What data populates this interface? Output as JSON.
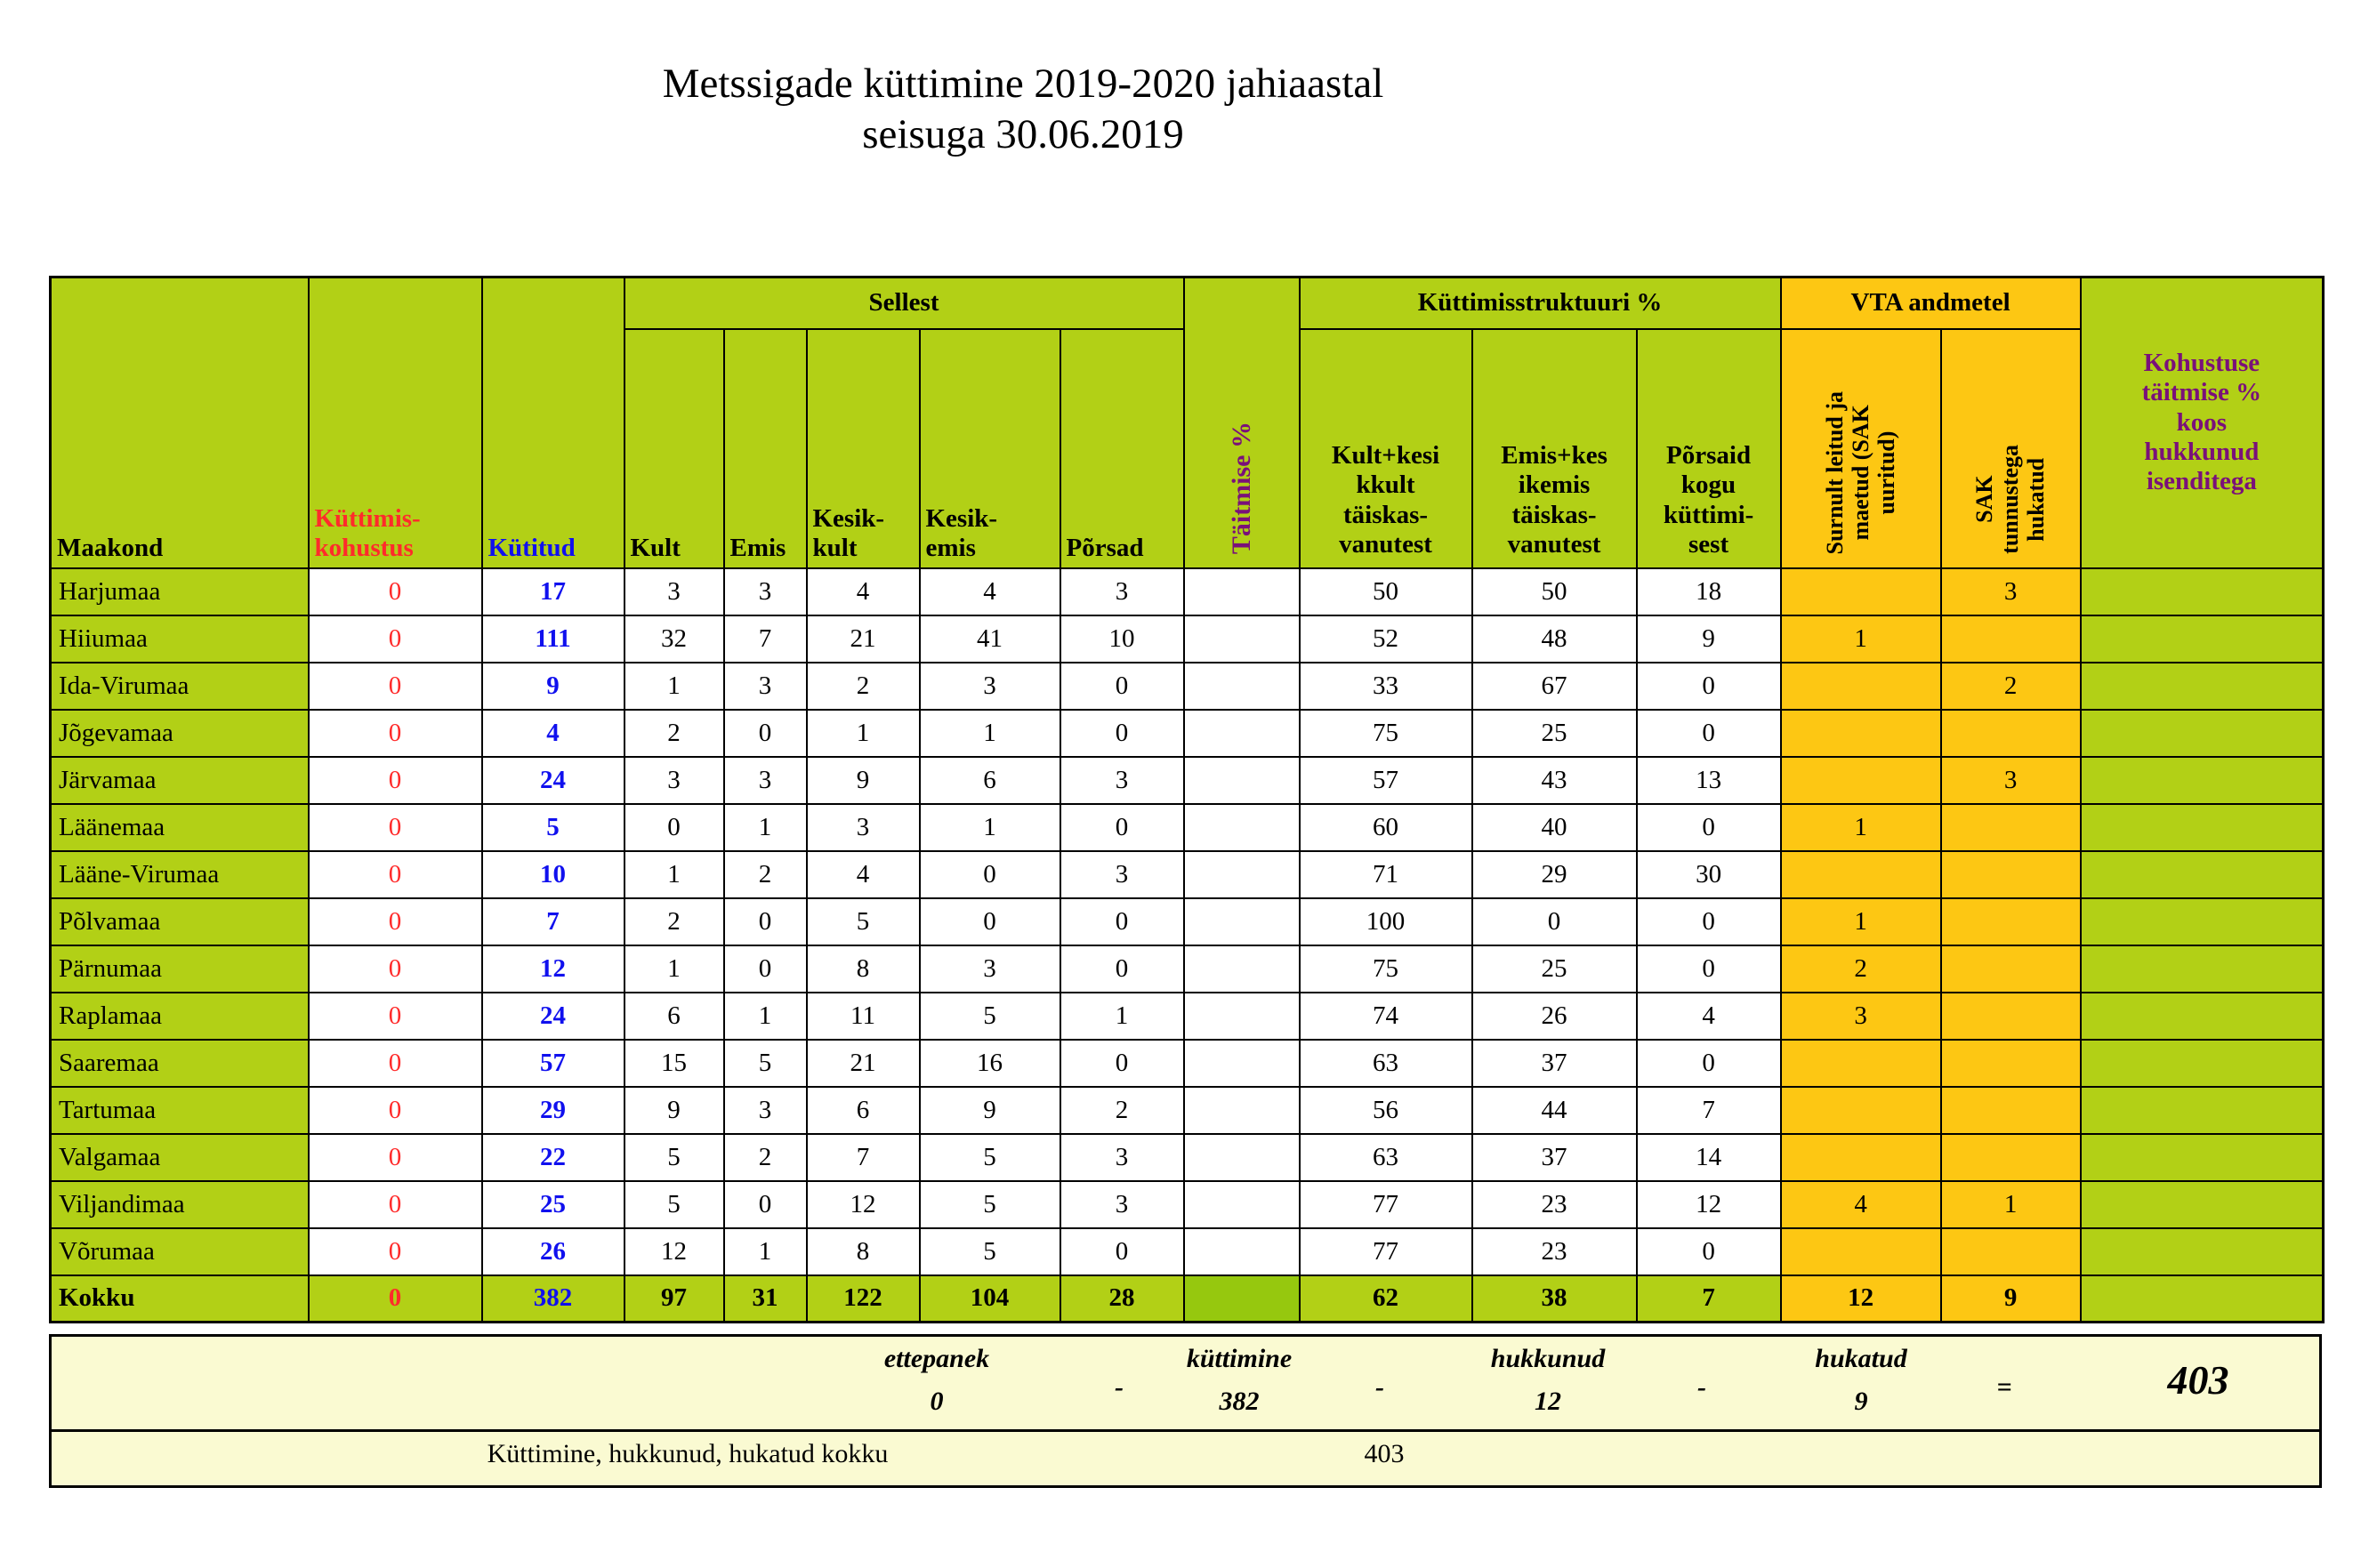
{
  "title": {
    "line1": "Metssigade küttimine 2019-2020 jahiaastal",
    "line2": "seisuga 30.06.2019"
  },
  "colors": {
    "green": "#b2d016",
    "green2": "#96c80e",
    "orange": "#fdc713",
    "pale": "#fafad2",
    "red": "#ff2b2b",
    "blue": "#1010ee",
    "purple": "#7a107a"
  },
  "table": {
    "headers": {
      "maakond": "Maakond",
      "kohustus": "Küttimis-\nkohustus",
      "kutitud": "Kütitud",
      "sellest": "Sellest",
      "kult": "Kult",
      "emis": "Emis",
      "kesik_kult": "Kesik-\nkult",
      "kesik_emis": "Kesik-\nemis",
      "porsad": "Põrsad",
      "taitmise": "Täitmise %",
      "struktuur": "Küttimisstruktuuri %",
      "kk": "Kult+kesi\nkkult\ntäiskas-\nvanutest",
      "ek": "Emis+kes\nikemis\ntäiskas-\nvanutest",
      "pk": "Põrsaid\nkogu\nküttimi-\nsest",
      "vta": "VTA andmetel",
      "vta1": "Surnult leitud ja\nmaetud (SAK\nuuritud)",
      "vta2": "SAK\ntunnustega\nhukatud",
      "kohustuse": "Kohustuse\ntäitmise %\nkoos\nhukkunud\nisenditega"
    },
    "rows": [
      {
        "cells": [
          "Harjumaa",
          "0",
          "17",
          "3",
          "3",
          "4",
          "4",
          "3",
          "",
          "50",
          "50",
          "18",
          "",
          "3",
          ""
        ]
      },
      {
        "cells": [
          "Hiiumaa",
          "0",
          "111",
          "32",
          "7",
          "21",
          "41",
          "10",
          "",
          "52",
          "48",
          "9",
          "1",
          "",
          ""
        ]
      },
      {
        "cells": [
          "Ida-Virumaa",
          "0",
          "9",
          "1",
          "3",
          "2",
          "3",
          "0",
          "",
          "33",
          "67",
          "0",
          "",
          "2",
          ""
        ]
      },
      {
        "cells": [
          "Jõgevamaa",
          "0",
          "4",
          "2",
          "0",
          "1",
          "1",
          "0",
          "",
          "75",
          "25",
          "0",
          "",
          "",
          ""
        ]
      },
      {
        "cells": [
          "Järvamaa",
          "0",
          "24",
          "3",
          "3",
          "9",
          "6",
          "3",
          "",
          "57",
          "43",
          "13",
          "",
          "3",
          ""
        ]
      },
      {
        "cells": [
          "Läänemaa",
          "0",
          "5",
          "0",
          "1",
          "3",
          "1",
          "0",
          "",
          "60",
          "40",
          "0",
          "1",
          "",
          ""
        ]
      },
      {
        "cells": [
          "Lääne-Virumaa",
          "0",
          "10",
          "1",
          "2",
          "4",
          "0",
          "3",
          "",
          "71",
          "29",
          "30",
          "",
          "",
          ""
        ]
      },
      {
        "cells": [
          "Põlvamaa",
          "0",
          "7",
          "2",
          "0",
          "5",
          "0",
          "0",
          "",
          "100",
          "0",
          "0",
          "1",
          "",
          ""
        ]
      },
      {
        "cells": [
          "Pärnumaa",
          "0",
          "12",
          "1",
          "0",
          "8",
          "3",
          "0",
          "",
          "75",
          "25",
          "0",
          "2",
          "",
          ""
        ]
      },
      {
        "cells": [
          "Raplamaa",
          "0",
          "24",
          "6",
          "1",
          "11",
          "5",
          "1",
          "",
          "74",
          "26",
          "4",
          "3",
          "",
          ""
        ]
      },
      {
        "cells": [
          "Saaremaa",
          "0",
          "57",
          "15",
          "5",
          "21",
          "16",
          "0",
          "",
          "63",
          "37",
          "0",
          "",
          "",
          ""
        ]
      },
      {
        "cells": [
          "Tartumaa",
          "0",
          "29",
          "9",
          "3",
          "6",
          "9",
          "2",
          "",
          "56",
          "44",
          "7",
          "",
          "",
          ""
        ]
      },
      {
        "cells": [
          "Valgamaa",
          "0",
          "22",
          "5",
          "2",
          "7",
          "5",
          "3",
          "",
          "63",
          "37",
          "14",
          "",
          "",
          ""
        ]
      },
      {
        "cells": [
          "Viljandimaa",
          "0",
          "25",
          "5",
          "0",
          "12",
          "5",
          "3",
          "",
          "77",
          "23",
          "12",
          "4",
          "1",
          ""
        ]
      },
      {
        "cells": [
          "Võrumaa",
          "0",
          "26",
          "12",
          "1",
          "8",
          "5",
          "0",
          "",
          "77",
          "23",
          "0",
          "",
          "",
          ""
        ]
      },
      {
        "cells": [
          "Kokku",
          "0",
          "382",
          "97",
          "31",
          "122",
          "104",
          "28",
          "",
          "62",
          "38",
          "7",
          "12",
          "9",
          ""
        ],
        "total": true
      }
    ]
  },
  "summary": {
    "terms": [
      {
        "label": "ettepanek",
        "value": "0"
      },
      {
        "label": "küttimine",
        "value": "382"
      },
      {
        "label": "hukkunud",
        "value": "12"
      },
      {
        "label": "hukatud",
        "value": "9"
      }
    ],
    "minus": "-",
    "equals": "=",
    "total": "403",
    "line2_label": "Küttimine, hukkunud, hukatud kokku",
    "line2_value": "403"
  }
}
